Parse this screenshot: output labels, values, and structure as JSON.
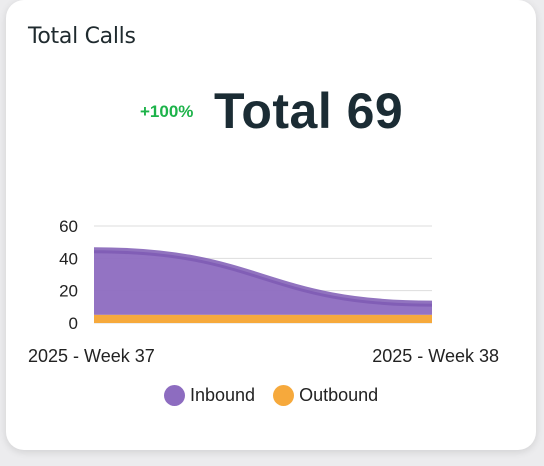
{
  "card": {
    "title": "Total Calls",
    "delta": "+100%",
    "total": "Total 69"
  },
  "colors": {
    "inbound": "#8d6cc0",
    "inbound_line": "#7e5bb4",
    "outbound": "#f6a93c",
    "delta": "#1db34a"
  },
  "chart_data": {
    "type": "area",
    "categories": [
      "2025 - Week 37",
      "2025 - Week 38"
    ],
    "series": [
      {
        "name": "Inbound",
        "values": [
          45,
          12
        ]
      },
      {
        "name": "Outbound",
        "values": [
          5,
          5
        ]
      }
    ],
    "stacked": true,
    "ylim": [
      0,
      60
    ],
    "yticks": [
      "0",
      "20",
      "40",
      "60"
    ],
    "grid": true,
    "legend": "bottom"
  },
  "legend": {
    "items": [
      {
        "label": "Inbound",
        "color": "#8d6cc0"
      },
      {
        "label": "Outbound",
        "color": "#f6a93c"
      }
    ]
  }
}
